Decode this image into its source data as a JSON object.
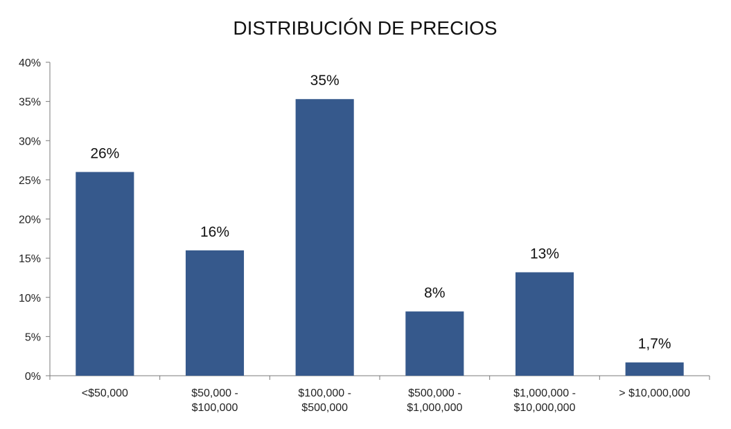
{
  "chart_data": {
    "type": "bar",
    "title": "DISTRIBUCIÓN DE PRECIOS",
    "xlabel": "",
    "ylabel": "",
    "categories": [
      [
        "<$50,000"
      ],
      [
        "$50,000 -",
        "$100,000"
      ],
      [
        "$100,000 -",
        "$500,000"
      ],
      [
        "$500,000 -",
        "$1,000,000"
      ],
      [
        "$1,000,000 -",
        "$10,000,000"
      ],
      [
        "> $10,000,000"
      ]
    ],
    "values": [
      26,
      16,
      35.3,
      8.2,
      13.2,
      1.7
    ],
    "data_labels": [
      "26%",
      "16%",
      "35%",
      "8%",
      "13%",
      "1,7%"
    ],
    "yticks": [
      "0%",
      "5%",
      "10%",
      "15%",
      "20%",
      "25%",
      "30%",
      "35%",
      "40%"
    ],
    "ylim": [
      0,
      40
    ],
    "grid": false,
    "legend": "none",
    "bar_color": "#36598c"
  }
}
